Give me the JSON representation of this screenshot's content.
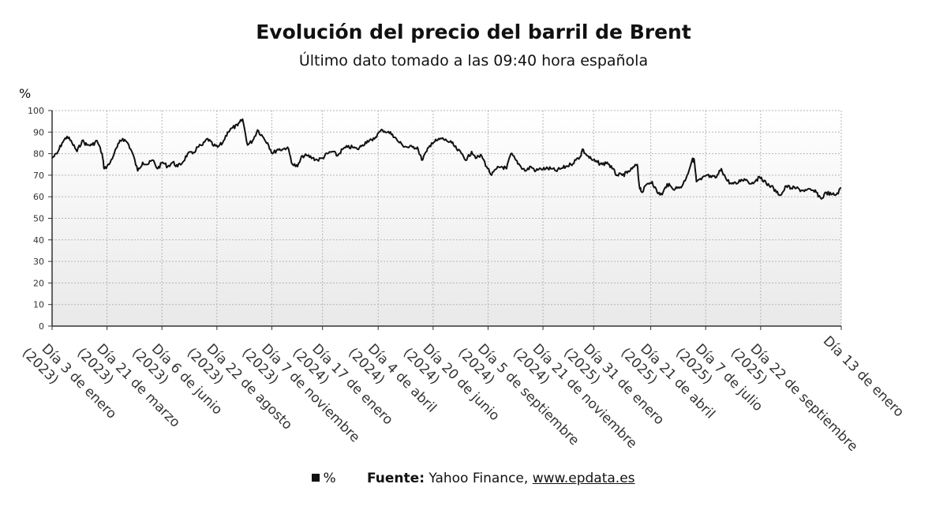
{
  "chart_data": {
    "type": "line",
    "title": "Evolución del precio del barril de Brent",
    "subtitle": "Último dato tomado a las 09:40 hora española",
    "ylabel": "%",
    "ylim": [
      0,
      100
    ],
    "yticks": [
      0,
      10,
      20,
      30,
      40,
      50,
      60,
      70,
      80,
      90,
      100
    ],
    "grid": true,
    "x_start": "2023-01-03",
    "x_end": "2026-01-13",
    "xticks": [
      {
        "date": "2023-01-03",
        "label": "Día 3 de enero (2023)"
      },
      {
        "date": "2023-03-21",
        "label": "Día 21 de marzo (2023)"
      },
      {
        "date": "2023-06-06",
        "label": "Día 6 de junio (2023)"
      },
      {
        "date": "2023-08-22",
        "label": "Día 22 de agosto (2023)"
      },
      {
        "date": "2023-11-07",
        "label": "Día 7 de noviembre (2023)"
      },
      {
        "date": "2024-01-17",
        "label": "Día 17 de enero (2024)"
      },
      {
        "date": "2024-04-04",
        "label": "Día 4 de abril (2024)"
      },
      {
        "date": "2024-06-20",
        "label": "Día 20 de junio (2024)"
      },
      {
        "date": "2024-09-05",
        "label": "Día 5 de septiembre (2024)"
      },
      {
        "date": "2024-11-21",
        "label": "Día 21 de noviembre (2024)"
      },
      {
        "date": "2025-01-31",
        "label": "Día 31 de enero (2025)"
      },
      {
        "date": "2025-04-21",
        "label": "Día 21 de abril (2025)"
      },
      {
        "date": "2025-07-07",
        "label": "Día 7 de julio (2025)"
      },
      {
        "date": "2025-09-22",
        "label": "Día 22 de septiembre (2025)"
      },
      {
        "date": "2026-01-13",
        "label": "Día 13 de enero"
      }
    ],
    "series": [
      {
        "name": "%",
        "color": "#111111",
        "points": [
          [
            "2023-01-03",
            78
          ],
          [
            "2023-01-10",
            80
          ],
          [
            "2023-01-17",
            85
          ],
          [
            "2023-01-24",
            88
          ],
          [
            "2023-01-31",
            85
          ],
          [
            "2023-02-07",
            81
          ],
          [
            "2023-02-14",
            86
          ],
          [
            "2023-02-21",
            84
          ],
          [
            "2023-02-28",
            84
          ],
          [
            "2023-03-07",
            86
          ],
          [
            "2023-03-14",
            80
          ],
          [
            "2023-03-17",
            73
          ],
          [
            "2023-03-24",
            75
          ],
          [
            "2023-03-31",
            80
          ],
          [
            "2023-04-07",
            85
          ],
          [
            "2023-04-12",
            87
          ],
          [
            "2023-04-19",
            85
          ],
          [
            "2023-04-26",
            80
          ],
          [
            "2023-05-03",
            72
          ],
          [
            "2023-05-10",
            76
          ],
          [
            "2023-05-17",
            75
          ],
          [
            "2023-05-24",
            77
          ],
          [
            "2023-05-31",
            73
          ],
          [
            "2023-06-07",
            76
          ],
          [
            "2023-06-14",
            74
          ],
          [
            "2023-06-21",
            76
          ],
          [
            "2023-06-28",
            74
          ],
          [
            "2023-07-05",
            76
          ],
          [
            "2023-07-12",
            80
          ],
          [
            "2023-07-19",
            80
          ],
          [
            "2023-07-26",
            83
          ],
          [
            "2023-08-02",
            84
          ],
          [
            "2023-08-09",
            87
          ],
          [
            "2023-08-16",
            84
          ],
          [
            "2023-08-23",
            83
          ],
          [
            "2023-08-30",
            85
          ],
          [
            "2023-09-06",
            90
          ],
          [
            "2023-09-13",
            92
          ],
          [
            "2023-09-20",
            93
          ],
          [
            "2023-09-27",
            96
          ],
          [
            "2023-10-04",
            84
          ],
          [
            "2023-10-11",
            86
          ],
          [
            "2023-10-18",
            91
          ],
          [
            "2023-10-25",
            88
          ],
          [
            "2023-11-01",
            85
          ],
          [
            "2023-11-08",
            80
          ],
          [
            "2023-11-15",
            82
          ],
          [
            "2023-11-22",
            82
          ],
          [
            "2023-11-29",
            83
          ],
          [
            "2023-12-06",
            75
          ],
          [
            "2023-12-13",
            74
          ],
          [
            "2023-12-20",
            79
          ],
          [
            "2023-12-27",
            79
          ],
          [
            "2024-01-03",
            78
          ],
          [
            "2024-01-10",
            77
          ],
          [
            "2024-01-17",
            78
          ],
          [
            "2024-01-24",
            80
          ],
          [
            "2024-01-31",
            81
          ],
          [
            "2024-02-07",
            79
          ],
          [
            "2024-02-14",
            82
          ],
          [
            "2024-02-21",
            83
          ],
          [
            "2024-02-28",
            83
          ],
          [
            "2024-03-06",
            82
          ],
          [
            "2024-03-13",
            84
          ],
          [
            "2024-03-20",
            86
          ],
          [
            "2024-03-27",
            86
          ],
          [
            "2024-04-03",
            89
          ],
          [
            "2024-04-10",
            91
          ],
          [
            "2024-04-17",
            90
          ],
          [
            "2024-04-24",
            89
          ],
          [
            "2024-05-01",
            86
          ],
          [
            "2024-05-08",
            84
          ],
          [
            "2024-05-15",
            83
          ],
          [
            "2024-05-22",
            83
          ],
          [
            "2024-05-29",
            83
          ],
          [
            "2024-06-04",
            77
          ],
          [
            "2024-06-11",
            81
          ],
          [
            "2024-06-18",
            85
          ],
          [
            "2024-06-25",
            86
          ],
          [
            "2024-07-02",
            87
          ],
          [
            "2024-07-09",
            86
          ],
          [
            "2024-07-16",
            85
          ],
          [
            "2024-07-23",
            82
          ],
          [
            "2024-07-30",
            80
          ],
          [
            "2024-08-06",
            77
          ],
          [
            "2024-08-13",
            81
          ],
          [
            "2024-08-20",
            78
          ],
          [
            "2024-08-27",
            79
          ],
          [
            "2024-09-03",
            74
          ],
          [
            "2024-09-10",
            70
          ],
          [
            "2024-09-17",
            73
          ],
          [
            "2024-09-24",
            74
          ],
          [
            "2024-10-01",
            73
          ],
          [
            "2024-10-07",
            80
          ],
          [
            "2024-10-14",
            77
          ],
          [
            "2024-10-21",
            74
          ],
          [
            "2024-10-28",
            72
          ],
          [
            "2024-11-04",
            74
          ],
          [
            "2024-11-11",
            72
          ],
          [
            "2024-11-18",
            73
          ],
          [
            "2024-11-25",
            73
          ],
          [
            "2024-12-02",
            73
          ],
          [
            "2024-12-09",
            72
          ],
          [
            "2024-12-16",
            73
          ],
          [
            "2024-12-23",
            74
          ],
          [
            "2024-12-30",
            75
          ],
          [
            "2025-01-06",
            77
          ],
          [
            "2025-01-13",
            79
          ],
          [
            "2025-01-15",
            82
          ],
          [
            "2025-01-22",
            79
          ],
          [
            "2025-01-29",
            77
          ],
          [
            "2025-02-05",
            76
          ],
          [
            "2025-02-12",
            75
          ],
          [
            "2025-02-19",
            76
          ],
          [
            "2025-02-26",
            73
          ],
          [
            "2025-03-05",
            70
          ],
          [
            "2025-03-12",
            70
          ],
          [
            "2025-03-19",
            71
          ],
          [
            "2025-03-26",
            73
          ],
          [
            "2025-04-02",
            75
          ],
          [
            "2025-04-05",
            65
          ],
          [
            "2025-04-09",
            62
          ],
          [
            "2025-04-16",
            66
          ],
          [
            "2025-04-23",
            67
          ],
          [
            "2025-04-30",
            62
          ],
          [
            "2025-05-07",
            61
          ],
          [
            "2025-05-14",
            66
          ],
          [
            "2025-05-21",
            64
          ],
          [
            "2025-05-28",
            64
          ],
          [
            "2025-06-04",
            65
          ],
          [
            "2025-06-11",
            70
          ],
          [
            "2025-06-18",
            77
          ],
          [
            "2025-06-21",
            77
          ],
          [
            "2025-06-24",
            67
          ],
          [
            "2025-07-01",
            68
          ],
          [
            "2025-07-08",
            70
          ],
          [
            "2025-07-15",
            69
          ],
          [
            "2025-07-22",
            69
          ],
          [
            "2025-07-29",
            73
          ],
          [
            "2025-08-05",
            68
          ],
          [
            "2025-08-12",
            66
          ],
          [
            "2025-08-19",
            66
          ],
          [
            "2025-08-26",
            68
          ],
          [
            "2025-09-02",
            68
          ],
          [
            "2025-09-09",
            66
          ],
          [
            "2025-09-16",
            68
          ],
          [
            "2025-09-23",
            69
          ],
          [
            "2025-09-30",
            66
          ],
          [
            "2025-10-07",
            65
          ],
          [
            "2025-10-14",
            62
          ],
          [
            "2025-10-21",
            61
          ],
          [
            "2025-10-28",
            65
          ],
          [
            "2025-11-04",
            64
          ],
          [
            "2025-11-11",
            64
          ],
          [
            "2025-11-18",
            63
          ],
          [
            "2025-11-25",
            63
          ],
          [
            "2025-12-02",
            63
          ],
          [
            "2025-12-09",
            62
          ],
          [
            "2025-12-16",
            59
          ],
          [
            "2025-12-23",
            62
          ],
          [
            "2025-12-30",
            61
          ],
          [
            "2026-01-06",
            61
          ],
          [
            "2026-01-13",
            64
          ]
        ]
      }
    ]
  },
  "legend": {
    "label": "%"
  },
  "footer": {
    "source_label": "Fuente:",
    "source_text": "Yahoo Finance,",
    "source_link": "www.epdata.es"
  }
}
